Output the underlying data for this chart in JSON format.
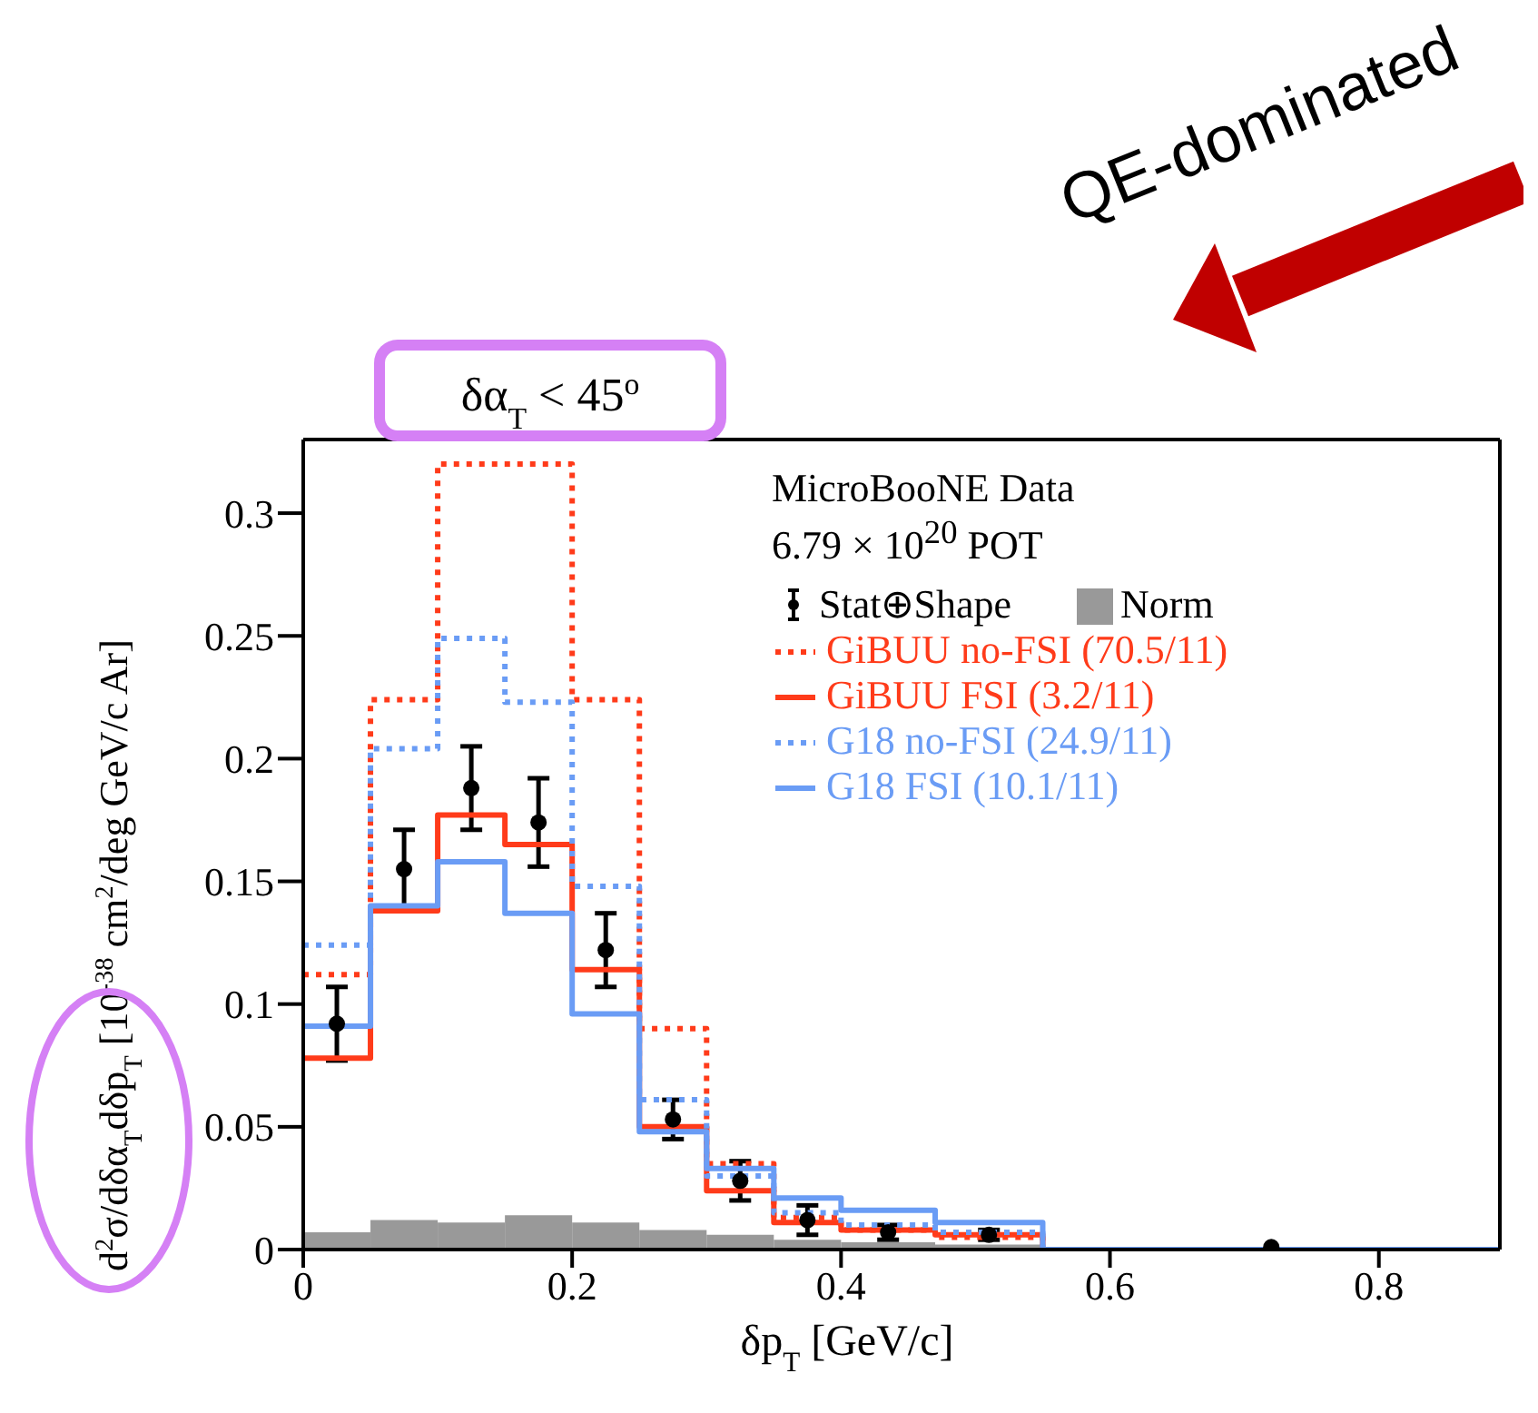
{
  "chart_data": {
    "type": "step",
    "title": "δα$_{T}$ < 45$^{o}$",
    "xlabel": "δp$_{T}$ [GeV/c]",
    "ylabel": "d$^{2}$σ/dδα$_{T}$dδp$_{T}$  [10$^{-38}$ cm$^{2}$/deg GeV/c Ar]",
    "legend_title": "MicroBooNE Data",
    "annotations": [
      "6.79 × 10$^{20}$ POT",
      "QE-dominated"
    ],
    "bins": [
      0,
      0.05,
      0.1,
      0.15,
      0.2,
      0.25,
      0.3,
      0.35,
      0.4,
      0.47,
      0.55,
      0.89
    ],
    "series": [
      {
        "name": "Stat⊕Shape",
        "type": "scatter",
        "color": "#000000",
        "marker": "circle",
        "x": [
          0.025,
          0.075,
          0.125,
          0.175,
          0.225,
          0.275,
          0.325,
          0.375,
          0.435,
          0.51,
          0.72
        ],
        "values": [
          0.092,
          0.155,
          0.188,
          0.174,
          0.122,
          0.053,
          0.028,
          0.012,
          0.007,
          0.006,
          0.001
        ],
        "errors": [
          0.015,
          0.016,
          0.017,
          0.018,
          0.015,
          0.008,
          0.008,
          0.006,
          0.003,
          0.002,
          null
        ]
      },
      {
        "name": "Norm",
        "type": "histogram",
        "color": "#999999",
        "values": [
          0.007,
          0.012,
          0.011,
          0.014,
          0.011,
          0.008,
          0.006,
          0.004,
          0.003,
          0.002,
          0.001
        ]
      },
      {
        "name": "GiBUU no-FSI (70.5/11)",
        "color": "#ff3b1a",
        "line_style": "dotted",
        "x": [
          0,
          0.05,
          0.1,
          0.15,
          0.2,
          0.25,
          0.3,
          0.35,
          0.4,
          0.47,
          0.55,
          0.89
        ],
        "values": [
          0.112,
          0.224,
          0.32,
          0.32,
          0.224,
          0.09,
          0.035,
          0.013,
          0.008,
          0.005,
          0,
          0
        ]
      },
      {
        "name": "GiBUU FSI (3.2/11)",
        "color": "#ff3b1a",
        "line_style": "solid",
        "x": [
          0,
          0.05,
          0.1,
          0.15,
          0.2,
          0.25,
          0.3,
          0.35,
          0.4,
          0.47,
          0.55,
          0.89
        ],
        "values": [
          0.078,
          0.138,
          0.177,
          0.165,
          0.114,
          0.05,
          0.024,
          0.011,
          0.008,
          0.006,
          0,
          0
        ]
      },
      {
        "name": "G18 no-FSI (24.9/11)",
        "color": "#6a9cf5",
        "line_style": "dotted",
        "x": [
          0,
          0.05,
          0.1,
          0.15,
          0.2,
          0.25,
          0.3,
          0.35,
          0.4,
          0.47,
          0.55,
          0.89
        ],
        "values": [
          0.124,
          0.204,
          0.249,
          0.223,
          0.148,
          0.061,
          0.03,
          0.015,
          0.01,
          0.007,
          0,
          0
        ]
      },
      {
        "name": "G18 FSI (10.1/11)",
        "color": "#6a9cf5",
        "line_style": "solid",
        "x": [
          0,
          0.05,
          0.1,
          0.15,
          0.2,
          0.25,
          0.3,
          0.35,
          0.4,
          0.47,
          0.55,
          0.89
        ],
        "values": [
          0.091,
          0.14,
          0.158,
          0.137,
          0.096,
          0.048,
          0.033,
          0.021,
          0.016,
          0.011,
          0,
          0
        ]
      }
    ],
    "xlim": [
      0,
      0.89
    ],
    "ylim": [
      0,
      0.33
    ],
    "xticks": [
      0,
      0.2,
      0.4,
      0.6,
      0.8
    ],
    "yticks": [
      0,
      0.05,
      0.1,
      0.15,
      0.2,
      0.25,
      0.3
    ],
    "grid": false,
    "legend": "top right"
  }
}
